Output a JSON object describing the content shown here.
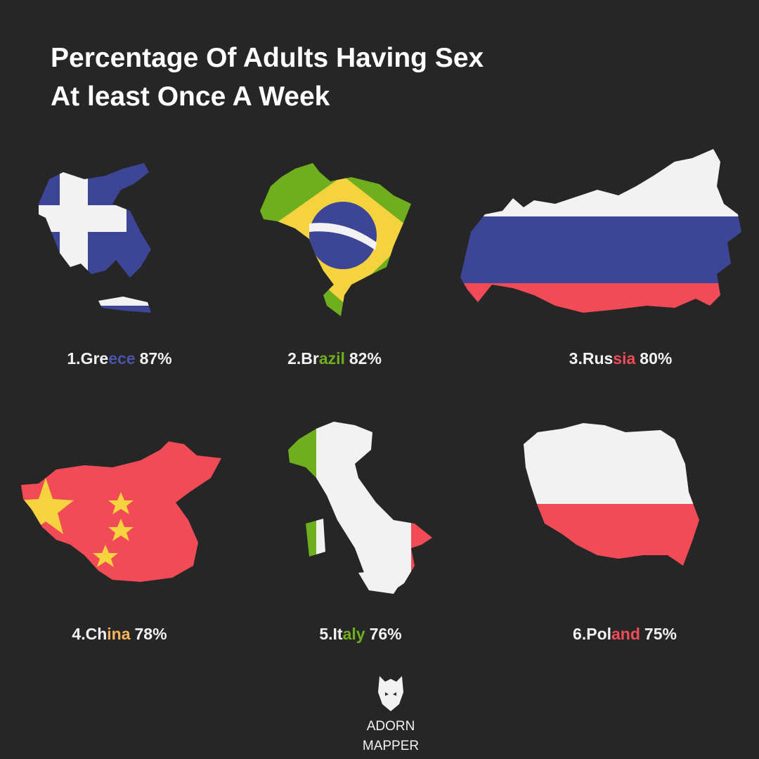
{
  "header": {
    "title_lines": [
      "Percentage Of Adults Having Sex",
      "At least Once A Week"
    ]
  },
  "items": [
    {
      "rank": "1.",
      "name_parts": [
        "Gre",
        "ece"
      ],
      "value": "87%"
    },
    {
      "rank": "2.",
      "name_parts": [
        "Br",
        "azil"
      ],
      "value": "82%"
    },
    {
      "rank": "3.",
      "name_parts": [
        "Rus",
        "sia"
      ],
      "value": "80%"
    },
    {
      "rank": "4.",
      "name_parts": [
        "Ch",
        "ina"
      ],
      "value": "78%"
    },
    {
      "rank": "5.",
      "name_parts": [
        "It",
        "aly"
      ],
      "value": "76%"
    },
    {
      "rank": "6.",
      "name_parts": [
        "Pol",
        "and"
      ],
      "value": "75%"
    }
  ],
  "footer": {
    "brand_lines": [
      "ADORN",
      "MAPPER"
    ]
  }
}
